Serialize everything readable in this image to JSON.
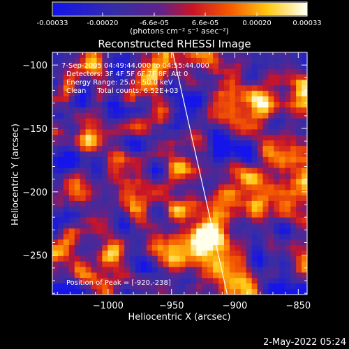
{
  "colorbar": {
    "tick_labels": [
      "-0.00033",
      "-0.00020",
      "-6.6e-05",
      "6.6e-05",
      "0.00020",
      "0.00033"
    ],
    "tick_values": [
      -0.00033,
      -0.0002,
      -6.6e-05,
      6.6e-05,
      0.0002,
      0.00033
    ],
    "range": [
      -0.00033,
      0.00033
    ],
    "unit_label": "(photons cm⁻² s⁻¹ asec⁻²)"
  },
  "chart_data": {
    "type": "heatmap",
    "title": "Reconstructed RHESSI Image",
    "xlabel": "Heliocentric X (arcsec)",
    "ylabel": "Heliocentric Y (arcsec)",
    "xlim": [
      -1044,
      -843
    ],
    "ylim": [
      -281,
      -90
    ],
    "x_ticks": [
      -1000,
      -950,
      -900,
      -850
    ],
    "x_tick_labels": [
      "−1000",
      "−950",
      "−900",
      "−850"
    ],
    "y_ticks": [
      -250,
      -200,
      -150,
      -100
    ],
    "y_tick_labels": [
      "−250",
      "−200",
      "−150",
      "−100"
    ],
    "peak": {
      "x": -920,
      "y": -238
    },
    "limb_line": [
      {
        "x": -949,
        "y": -90
      },
      {
        "x": -906,
        "y": -281
      }
    ],
    "colormap": "rainbow-purple-red-yellow",
    "annotations": [
      "7-Sep-2005 04:49:44.000 to 04:55:44.000",
      "Detectors: 3F 4F 5F 6F 7F 8F, Att 0",
      "Energy Range: 25.0 - 50.0 keV",
      "Clean     Total counts: 6.52E+03",
      "Position of Peak = [-920,-238]"
    ]
  },
  "timestamp": "2-May-2022 05:24"
}
